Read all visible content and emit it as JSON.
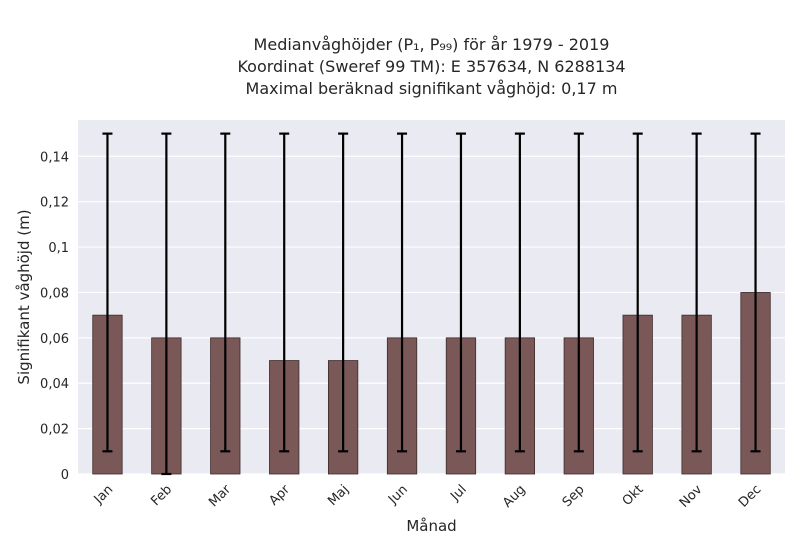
{
  "chart_data": {
    "type": "bar",
    "title_lines": [
      "Medianvåghöjder (P₁, P₉₉) för år 1979 - 2019",
      "Koordinat (Sweref 99 TM): E 357634, N 6288134",
      "Maximal beräknad signifikant våghöjd: 0,17 m"
    ],
    "xlabel": "Månad",
    "ylabel": "Signifikant våghöjd (m)",
    "categories": [
      "Jan",
      "Feb",
      "Mar",
      "Apr",
      "Maj",
      "Jun",
      "Jul",
      "Aug",
      "Sep",
      "Okt",
      "Nov",
      "Dec"
    ],
    "values": [
      0.07,
      0.06,
      0.06,
      0.05,
      0.05,
      0.06,
      0.06,
      0.06,
      0.06,
      0.07,
      0.07,
      0.08
    ],
    "err_low": [
      0.01,
      0.0,
      0.01,
      0.01,
      0.01,
      0.01,
      0.01,
      0.01,
      0.01,
      0.01,
      0.01,
      0.01
    ],
    "err_high": [
      0.15,
      0.15,
      0.15,
      0.15,
      0.15,
      0.15,
      0.15,
      0.15,
      0.15,
      0.15,
      0.15,
      0.15
    ],
    "ylim": [
      0,
      0.156
    ],
    "yticks": [
      0,
      0.02,
      0.04,
      0.06,
      0.08,
      0.1,
      0.12,
      0.14
    ],
    "ytick_labels": [
      "0",
      "0,02",
      "0,04",
      "0,06",
      "0,08",
      "0,1",
      "0,12",
      "0,14"
    ],
    "grid": true,
    "colors": {
      "bar": "#7a5858",
      "bar_edge": "#3d2b2b",
      "error": "#000000",
      "plot_bg": "#eaeaf2",
      "grid": "#ffffff",
      "text": "#262626"
    }
  }
}
